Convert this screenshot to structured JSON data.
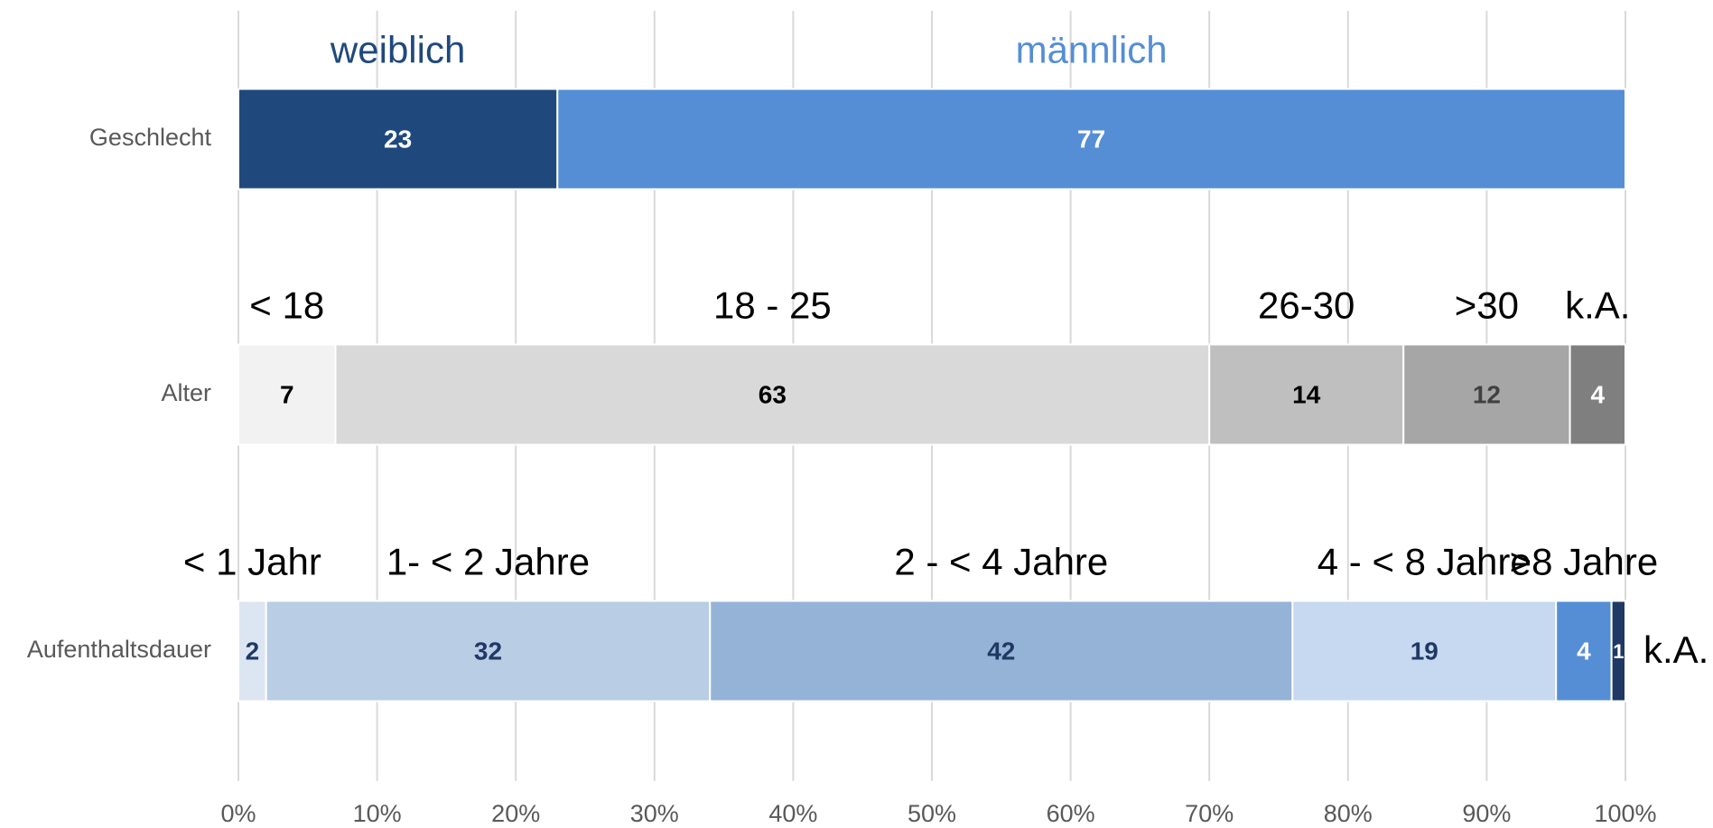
{
  "chart_data": {
    "type": "stacked-bar-horizontal",
    "xlim": [
      0,
      100
    ],
    "xticks": [
      {
        "value": 0,
        "label": "0%"
      },
      {
        "value": 10,
        "label": "10%"
      },
      {
        "value": 20,
        "label": "20%"
      },
      {
        "value": 30,
        "label": "30%"
      },
      {
        "value": 40,
        "label": "40%"
      },
      {
        "value": 50,
        "label": "50%"
      },
      {
        "value": 60,
        "label": "60%"
      },
      {
        "value": 70,
        "label": "70%"
      },
      {
        "value": 80,
        "label": "80%"
      },
      {
        "value": 90,
        "label": "90%"
      },
      {
        "value": 100,
        "label": "100%"
      }
    ],
    "grid": true,
    "rows": [
      {
        "category": "Geschlecht",
        "segments": [
          {
            "name": "weiblich",
            "value": 23,
            "color": "#1f497d",
            "text_color": "#ffffff",
            "label_color": "#1f497d"
          },
          {
            "name": "männlich",
            "value": 77,
            "color": "#558ed5",
            "text_color": "#ffffff",
            "label_color": "#558ed5"
          }
        ]
      },
      {
        "category": "Alter",
        "segments": [
          {
            "name": "< 18",
            "value": 7,
            "color": "#f2f2f2",
            "text_color": "#000000",
            "label_color": "#000000"
          },
          {
            "name": "18 - 25",
            "value": 63,
            "color": "#d9d9d9",
            "text_color": "#000000",
            "label_color": "#000000"
          },
          {
            "name": "26-30",
            "value": 14,
            "color": "#bfbfbf",
            "text_color": "#000000",
            "label_color": "#000000"
          },
          {
            "name": ">30",
            "value": 12,
            "color": "#a6a6a6",
            "text_color": "#404040",
            "label_color": "#000000"
          },
          {
            "name": "k.A.",
            "value": 4,
            "color": "#7f7f7f",
            "text_color": "#ffffff",
            "label_color": "#000000"
          }
        ]
      },
      {
        "category": "Aufenthaltsdauer",
        "segments": [
          {
            "name": "< 1 Jahr",
            "value": 2,
            "color": "#dce6f2",
            "text_color": "#1f3864",
            "label_color": "#000000"
          },
          {
            "name": "1- < 2 Jahre",
            "value": 32,
            "color": "#b9cde5",
            "text_color": "#1f3864",
            "label_color": "#000000"
          },
          {
            "name": "2 - < 4 Jahre",
            "value": 42,
            "color": "#95b3d7",
            "text_color": "#1f3864",
            "label_color": "#000000"
          },
          {
            "name": "4 - < 8 Jahre",
            "value": 19,
            "color": "#c6d9f1",
            "text_color": "#1f3864",
            "label_color": "#000000"
          },
          {
            "name": ">8 Jahre",
            "value": 4,
            "color": "#558ed5",
            "text_color": "#ffffff",
            "label_color": "#000000"
          },
          {
            "name": "k.A.",
            "value": 1,
            "color": "#1f3864",
            "text_color": "#ffffff",
            "label_color": "#000000"
          }
        ]
      }
    ]
  }
}
